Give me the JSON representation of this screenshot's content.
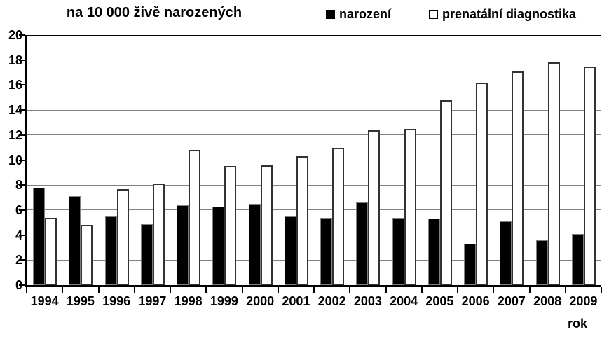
{
  "header": {
    "title": "na 10 000 živě narozených"
  },
  "x_axis_title": "rok",
  "colors": {
    "bar_filled": "#000000",
    "bar_outlined_fill": "#ffffff",
    "bar_outlined_border": "#333333",
    "gridline": "#808080",
    "axis": "#000000",
    "background": "#ffffff",
    "text": "#000000"
  },
  "chart_data": {
    "type": "bar",
    "title": "na 10 000 živě narozených",
    "xlabel": "rok",
    "ylabel": "",
    "ylim": [
      0,
      20
    ],
    "ytick_step": 2,
    "grid": true,
    "legend_position": "top",
    "categories": [
      "1994",
      "1995",
      "1996",
      "1997",
      "1998",
      "1999",
      "2000",
      "2001",
      "2002",
      "2003",
      "2004",
      "2005",
      "2006",
      "2007",
      "2008",
      "2009"
    ],
    "series": [
      {
        "name": "narození",
        "style": "filled-black",
        "values": [
          7.8,
          7.1,
          5.5,
          4.9,
          6.4,
          6.3,
          6.5,
          5.5,
          5.4,
          6.6,
          5.4,
          5.3,
          3.3,
          5.1,
          3.6,
          4.1
        ]
      },
      {
        "name": "prenatální diagnostika",
        "style": "outlined-white",
        "values": [
          5.4,
          4.8,
          7.7,
          8.1,
          10.8,
          9.5,
          9.6,
          10.3,
          11.0,
          12.4,
          12.5,
          14.8,
          16.2,
          17.1,
          17.8,
          17.5
        ]
      }
    ]
  }
}
